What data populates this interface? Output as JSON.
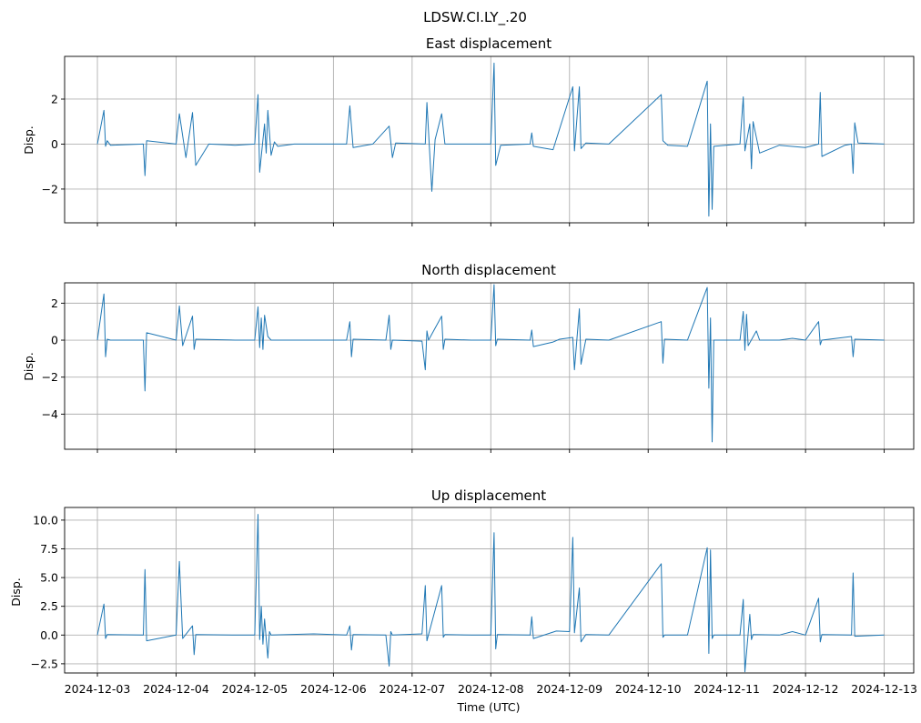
{
  "figure": {
    "suptitle": "LDSW.CI.LY_.20",
    "xlabel": "Time (UTC)"
  },
  "colors": {
    "series": "#1f77b4",
    "grid": "#b0b0b0"
  },
  "chart_data": [
    {
      "type": "line",
      "title": "East displacement",
      "ylabel": "Disp.",
      "xlim": [
        "2024-12-02T14:00",
        "2024-12-13T09:00"
      ],
      "ylim": [
        -3.5,
        3.9
      ],
      "yticks": [
        -2,
        0,
        2
      ],
      "ytick_labels": [
        "−2",
        "0",
        "2"
      ],
      "grid": true,
      "series": [
        {
          "x": [
            "2024-12-03T00:00",
            "2024-12-03T02:00",
            "2024-12-03T02:30",
            "2024-12-03T03:00",
            "2024-12-03T04:00",
            "2024-12-03T14:00",
            "2024-12-03T14:30",
            "2024-12-03T15:00",
            "2024-12-04T00:00",
            "2024-12-04T01:00",
            "2024-12-04T03:00",
            "2024-12-04T05:00",
            "2024-12-04T06:00",
            "2024-12-04T10:00",
            "2024-12-04T18:00",
            "2024-12-05T00:00",
            "2024-12-05T01:00",
            "2024-12-05T01:30",
            "2024-12-05T03:00",
            "2024-12-05T03:30",
            "2024-12-05T04:00",
            "2024-12-05T05:00",
            "2024-12-05T06:00",
            "2024-12-05T07:00",
            "2024-12-05T12:00",
            "2024-12-06T04:00",
            "2024-12-06T05:00",
            "2024-12-06T06:00",
            "2024-12-06T12:00",
            "2024-12-06T17:00",
            "2024-12-06T18:00",
            "2024-12-06T19:00",
            "2024-12-07T04:00",
            "2024-12-07T04:30",
            "2024-12-07T06:00",
            "2024-12-07T07:00",
            "2024-12-07T09:00",
            "2024-12-07T10:00",
            "2024-12-07T18:00",
            "2024-12-08T00:00",
            "2024-12-08T01:00",
            "2024-12-08T01:30",
            "2024-12-08T03:00",
            "2024-12-08T12:00",
            "2024-12-08T12:30",
            "2024-12-08T13:00",
            "2024-12-08T19:00",
            "2024-12-09T01:00",
            "2024-12-09T01:30",
            "2024-12-09T03:00",
            "2024-12-09T03:30",
            "2024-12-09T05:00",
            "2024-12-09T12:00",
            "2024-12-10T04:00",
            "2024-12-10T04:30",
            "2024-12-10T06:00",
            "2024-12-10T12:00",
            "2024-12-10T18:00",
            "2024-12-10T18:30",
            "2024-12-10T19:00",
            "2024-12-10T19:30",
            "2024-12-10T20:00",
            "2024-12-11T04:00",
            "2024-12-11T05:00",
            "2024-12-11T05:30",
            "2024-12-11T07:00",
            "2024-12-11T07:30",
            "2024-12-11T08:00",
            "2024-12-11T10:00",
            "2024-12-11T16:00",
            "2024-12-12T00:00",
            "2024-12-12T04:00",
            "2024-12-12T04:30",
            "2024-12-12T05:00",
            "2024-12-12T12:00",
            "2024-12-12T14:00",
            "2024-12-12T14:30",
            "2024-12-12T15:00",
            "2024-12-12T16:00",
            "2024-12-13T00:00"
          ],
          "y": [
            0,
            1.5,
            -0.1,
            0.15,
            -0.05,
            0,
            -1.4,
            0.15,
            0,
            1.35,
            -0.6,
            1.4,
            -0.95,
            0,
            -0.05,
            0,
            2.2,
            -1.25,
            0.9,
            -0.4,
            1.5,
            -0.5,
            0.1,
            -0.1,
            0,
            0,
            1.7,
            -0.15,
            0,
            0.8,
            -0.6,
            0.05,
            0,
            1.85,
            -2.1,
            0.2,
            1.35,
            0,
            0,
            0,
            3.6,
            -0.95,
            -0.05,
            0,
            0.5,
            -0.1,
            -0.25,
            2.55,
            -0.3,
            2.55,
            -0.2,
            0.05,
            0,
            2.2,
            0.15,
            -0.05,
            -0.1,
            2.8,
            -3.2,
            0.9,
            -2.9,
            -0.1,
            0,
            2.1,
            -0.3,
            0.9,
            -1.1,
            1.0,
            -0.4,
            -0.05,
            -0.15,
            0,
            2.3,
            -0.55,
            -0.05,
            0,
            -1.3,
            0.95,
            0.05,
            0
          ]
        }
      ]
    },
    {
      "type": "line",
      "title": "North displacement",
      "ylabel": "Disp.",
      "xlim": [
        "2024-12-02T14:00",
        "2024-12-13T09:00"
      ],
      "ylim": [
        -5.9,
        3.1
      ],
      "yticks": [
        -4,
        -2,
        0,
        2
      ],
      "ytick_labels": [
        "−4",
        "−2",
        "0",
        "2"
      ],
      "grid": true,
      "series": [
        {
          "x": [
            "2024-12-03T00:00",
            "2024-12-03T02:00",
            "2024-12-03T02:30",
            "2024-12-03T03:00",
            "2024-12-03T04:00",
            "2024-12-03T14:00",
            "2024-12-03T14:30",
            "2024-12-03T15:00",
            "2024-12-04T00:00",
            "2024-12-04T01:00",
            "2024-12-04T02:00",
            "2024-12-04T05:00",
            "2024-12-04T05:30",
            "2024-12-04T06:00",
            "2024-12-04T18:00",
            "2024-12-05T00:00",
            "2024-12-05T01:00",
            "2024-12-05T01:30",
            "2024-12-05T02:00",
            "2024-12-05T02:30",
            "2024-12-05T03:00",
            "2024-12-05T04:00",
            "2024-12-05T05:00",
            "2024-12-05T12:00",
            "2024-12-06T04:00",
            "2024-12-06T05:00",
            "2024-12-06T05:30",
            "2024-12-06T06:00",
            "2024-12-06T16:00",
            "2024-12-06T17:00",
            "2024-12-06T17:30",
            "2024-12-06T18:00",
            "2024-12-07T03:00",
            "2024-12-07T04:00",
            "2024-12-07T04:30",
            "2024-12-07T05:00",
            "2024-12-07T09:00",
            "2024-12-07T09:30",
            "2024-12-07T10:00",
            "2024-12-07T18:00",
            "2024-12-08T00:00",
            "2024-12-08T01:00",
            "2024-12-08T01:30",
            "2024-12-08T02:00",
            "2024-12-08T12:00",
            "2024-12-08T12:30",
            "2024-12-08T13:00",
            "2024-12-08T19:00",
            "2024-12-08T21:00",
            "2024-12-09T01:00",
            "2024-12-09T01:30",
            "2024-12-09T03:00",
            "2024-12-09T03:30",
            "2024-12-09T05:00",
            "2024-12-09T12:00",
            "2024-12-10T04:00",
            "2024-12-10T04:30",
            "2024-12-10T05:00",
            "2024-12-10T12:00",
            "2024-12-10T18:00",
            "2024-12-10T18:30",
            "2024-12-10T19:00",
            "2024-12-10T19:30",
            "2024-12-10T20:00",
            "2024-12-11T04:00",
            "2024-12-11T05:00",
            "2024-12-11T05:30",
            "2024-12-11T06:00",
            "2024-12-11T06:30",
            "2024-12-11T09:00",
            "2024-12-11T10:00",
            "2024-12-11T16:00",
            "2024-12-11T20:00",
            "2024-12-12T00:00",
            "2024-12-12T04:00",
            "2024-12-12T04:30",
            "2024-12-12T05:00",
            "2024-12-12T14:00",
            "2024-12-12T14:30",
            "2024-12-12T15:00",
            "2024-12-13T00:00"
          ],
          "y": [
            0,
            2.5,
            -0.9,
            0.05,
            0,
            0,
            -2.75,
            0.4,
            0,
            1.85,
            -0.3,
            1.3,
            -0.5,
            0.05,
            0,
            0,
            1.8,
            -0.4,
            1.2,
            -0.5,
            1.35,
            0.2,
            0,
            0,
            0,
            1.0,
            -0.9,
            0.05,
            0,
            1.35,
            -0.5,
            0,
            -0.05,
            -1.6,
            0.5,
            0,
            1.3,
            -0.5,
            0.05,
            0,
            0,
            3.0,
            -0.3,
            0.05,
            0,
            0.55,
            -0.35,
            -0.1,
            0.05,
            0.15,
            -1.6,
            1.7,
            -1.3,
            0.05,
            0,
            1.0,
            -1.25,
            0.05,
            0,
            2.85,
            -2.6,
            1.2,
            -5.5,
            0,
            0,
            1.55,
            -0.55,
            1.4,
            -0.3,
            0.5,
            0,
            0,
            0.1,
            0,
            1.0,
            -0.25,
            0,
            0.2,
            -0.9,
            0.05,
            0
          ]
        }
      ]
    },
    {
      "type": "line",
      "title": "Up displacement",
      "ylabel": "Disp.",
      "xlim": [
        "2024-12-02T14:00",
        "2024-12-13T09:00"
      ],
      "ylim": [
        -3.3,
        11.1
      ],
      "yticks": [
        -2.5,
        0.0,
        2.5,
        5.0,
        7.5,
        10.0
      ],
      "ytick_labels": [
        "−2.5",
        "0.0",
        "2.5",
        "5.0",
        "7.5",
        "10.0"
      ],
      "grid": true,
      "series": [
        {
          "x": [
            "2024-12-03T00:00",
            "2024-12-03T02:00",
            "2024-12-03T02:30",
            "2024-12-03T03:00",
            "2024-12-03T14:00",
            "2024-12-03T14:30",
            "2024-12-03T15:00",
            "2024-12-04T00:00",
            "2024-12-04T01:00",
            "2024-12-04T02:00",
            "2024-12-04T05:00",
            "2024-12-04T05:30",
            "2024-12-04T06:00",
            "2024-12-04T18:00",
            "2024-12-05T00:00",
            "2024-12-05T01:00",
            "2024-12-05T01:30",
            "2024-12-05T02:00",
            "2024-12-05T02:30",
            "2024-12-05T03:00",
            "2024-12-05T04:00",
            "2024-12-05T04:30",
            "2024-12-05T05:00",
            "2024-12-05T18:00",
            "2024-12-06T04:00",
            "2024-12-06T05:00",
            "2024-12-06T05:30",
            "2024-12-06T06:00",
            "2024-12-06T16:00",
            "2024-12-06T17:00",
            "2024-12-06T17:30",
            "2024-12-06T18:00",
            "2024-12-07T03:00",
            "2024-12-07T04:00",
            "2024-12-07T04:30",
            "2024-12-07T05:00",
            "2024-12-07T09:00",
            "2024-12-07T09:30",
            "2024-12-07T10:00",
            "2024-12-07T18:00",
            "2024-12-08T00:00",
            "2024-12-08T01:00",
            "2024-12-08T01:30",
            "2024-12-08T02:00",
            "2024-12-08T12:00",
            "2024-12-08T12:30",
            "2024-12-08T13:00",
            "2024-12-08T20:00",
            "2024-12-09T00:00",
            "2024-12-09T01:00",
            "2024-12-09T01:30",
            "2024-12-09T03:00",
            "2024-12-09T03:30",
            "2024-12-09T05:00",
            "2024-12-09T12:00",
            "2024-12-10T04:00",
            "2024-12-10T04:30",
            "2024-12-10T05:00",
            "2024-12-10T12:00",
            "2024-12-10T18:00",
            "2024-12-10T18:30",
            "2024-12-10T19:00",
            "2024-12-10T19:30",
            "2024-12-10T20:00",
            "2024-12-11T04:00",
            "2024-12-11T05:00",
            "2024-12-11T05:30",
            "2024-12-11T07:00",
            "2024-12-11T07:30",
            "2024-12-11T08:00",
            "2024-12-11T16:00",
            "2024-12-11T20:00",
            "2024-12-12T00:00",
            "2024-12-12T04:00",
            "2024-12-12T04:30",
            "2024-12-12T05:00",
            "2024-12-12T14:00",
            "2024-12-12T14:30",
            "2024-12-12T15:00",
            "2024-12-13T00:00"
          ],
          "y": [
            0,
            2.7,
            -0.3,
            0.05,
            0,
            5.7,
            -0.5,
            0,
            6.4,
            -0.3,
            0.8,
            -1.7,
            0.05,
            0,
            0,
            10.5,
            -0.4,
            2.5,
            -0.8,
            1.4,
            -2.0,
            0.3,
            0,
            0.1,
            0,
            0.8,
            -1.3,
            0.05,
            0,
            -2.7,
            0.3,
            0,
            0.1,
            4.3,
            -0.5,
            0.05,
            4.3,
            -0.2,
            0.05,
            0,
            0,
            8.9,
            -1.2,
            0.05,
            0,
            1.6,
            -0.3,
            0.35,
            0.3,
            8.5,
            0.2,
            4.1,
            -0.6,
            0.05,
            0,
            6.2,
            -0.2,
            0,
            0,
            7.6,
            -1.6,
            7.4,
            -0.3,
            0,
            0,
            3.1,
            -3.2,
            1.8,
            -0.4,
            0.05,
            0,
            0.3,
            0,
            3.2,
            -0.6,
            0.05,
            0,
            5.4,
            -0.1,
            0
          ]
        }
      ]
    }
  ],
  "xaxis": {
    "ticks": [
      "2024-12-03",
      "2024-12-04",
      "2024-12-05",
      "2024-12-06",
      "2024-12-07",
      "2024-12-08",
      "2024-12-09",
      "2024-12-10",
      "2024-12-11",
      "2024-12-12",
      "2024-12-13"
    ],
    "tick_labels": [
      "2024-12-03",
      "2024-12-04",
      "2024-12-05",
      "2024-12-06",
      "2024-12-07",
      "2024-12-08",
      "2024-12-09",
      "2024-12-10",
      "2024-12-11",
      "2024-12-12",
      "2024-12-13"
    ]
  }
}
